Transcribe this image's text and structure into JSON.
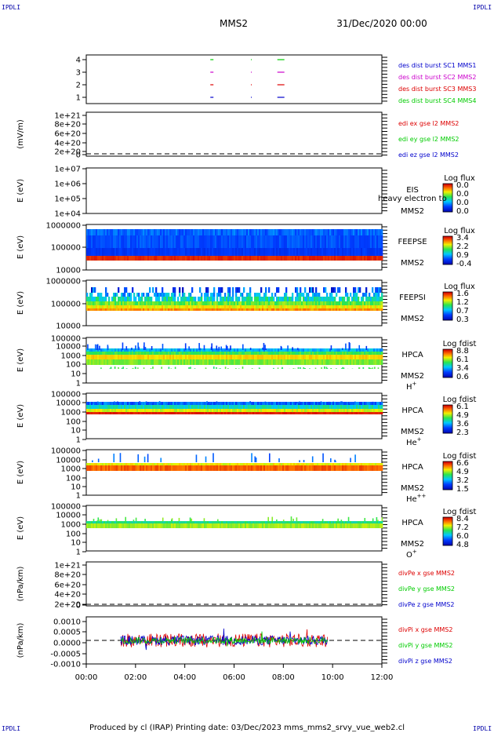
{
  "header": {
    "corner_tl": "IPDLI",
    "corner_tr": "IPDLI",
    "corner_bl": "IPDLI",
    "corner_br": "IPDLI",
    "spacecraft": "MMS2",
    "date": "31/Dec/2020 00:00"
  },
  "footer": {
    "text": "Produced by cl (IRAP)   Printing date: 03/Dec/2023   mms_mms2_srvy_vue_web2.cl"
  },
  "colors": {
    "blue": "#0000cc",
    "magenta": "#cc00cc",
    "red": "#dd0000",
    "green": "#00cc00"
  },
  "chart_data": {
    "type": "multi-panel",
    "xaxis": {
      "range": [
        "00:00",
        "12:00"
      ],
      "ticks": [
        "00:00",
        "02:00",
        "04:00",
        "06:00",
        "08:00",
        "10:00",
        "12:00"
      ]
    },
    "panels": [
      {
        "id": "burst",
        "type": "scatter",
        "yticks": [
          "4",
          "3",
          "2",
          "1"
        ],
        "legend": [
          {
            "text": "des dist burst SC1 MMS1",
            "color": "#0000cc"
          },
          {
            "text": "des dist burst SC2 MMS2",
            "color": "#cc00cc"
          },
          {
            "text": "des dist burst SC3 MMS3",
            "color": "#dd0000"
          },
          {
            "text": "des dist burst SC4 MMS4",
            "color": "#00cc00"
          }
        ],
        "bursts_hours": [
          5.1,
          6.7,
          7.9
        ]
      },
      {
        "id": "edi",
        "type": "line",
        "ylabel": "(mV/m)",
        "yticks": [
          "1e+21",
          "8e+20",
          "6e+20",
          "4e+20",
          "2e+20",
          "0"
        ],
        "legend": [
          {
            "text": "edi ex gse l2 MMS2",
            "color": "#dd0000"
          },
          {
            "text": "edi ey gse l2 MMS2",
            "color": "#00cc00"
          },
          {
            "text": "edi ez gse l2 MMS2",
            "color": "#0000cc"
          }
        ]
      },
      {
        "id": "eis",
        "type": "heatmap",
        "ylabel": "E (eV)",
        "yticks": [
          "1e+07",
          "1e+06",
          "1e+05",
          "1e+04"
        ],
        "labels": [
          "EIS",
          "MMS2"
        ],
        "overlay_text": "heavy electron to",
        "cbar_title": "Log flux",
        "cbar_ticks": [
          "0.0",
          "0.0",
          "0.0",
          "0.0"
        ]
      },
      {
        "id": "feepse",
        "type": "heatmap",
        "ylabel": "E (eV)",
        "yticks": [
          "1000000",
          "100000",
          "10000"
        ],
        "labels": [
          "FEEPSE",
          "MMS2"
        ],
        "cbar_title": "Log flux",
        "cbar_ticks": [
          "3.4",
          "2.2",
          "0.9",
          "-0.4"
        ]
      },
      {
        "id": "feepsi",
        "type": "heatmap",
        "ylabel": "E (eV)",
        "yticks": [
          "1000000",
          "100000",
          "10000"
        ],
        "labels": [
          "FEEPSI",
          "MMS2"
        ],
        "cbar_title": "Log flux",
        "cbar_ticks": [
          "1.6",
          "1.2",
          "0.7",
          "0.3"
        ]
      },
      {
        "id": "hpca_h",
        "type": "heatmap",
        "ylabel": "E (eV)",
        "yticks": [
          "100000",
          "10000",
          "1000",
          "100",
          "10",
          "1"
        ],
        "labels": [
          "HPCA",
          "MMS2"
        ],
        "species": "H",
        "species_sup": "+",
        "cbar_title": "Log fdist",
        "cbar_ticks": [
          "8.8",
          "6.1",
          "3.4",
          "0.6"
        ]
      },
      {
        "id": "hpca_he",
        "type": "heatmap",
        "ylabel": "E (eV)",
        "yticks": [
          "100000",
          "10000",
          "1000",
          "100",
          "10",
          "1"
        ],
        "labels": [
          "HPCA",
          "MMS2"
        ],
        "species": "He",
        "species_sup": "+",
        "cbar_title": "Log fdist",
        "cbar_ticks": [
          "6.1",
          "4.9",
          "3.6",
          "2.3"
        ]
      },
      {
        "id": "hpca_hepp",
        "type": "heatmap",
        "ylabel": "E (eV)",
        "yticks": [
          "100000",
          "10000",
          "1000",
          "100",
          "10",
          "1"
        ],
        "labels": [
          "HPCA",
          "MMS2"
        ],
        "species": "He",
        "species_sup": "++",
        "cbar_title": "Log fdist",
        "cbar_ticks": [
          "6.6",
          "4.9",
          "3.2",
          "1.5"
        ]
      },
      {
        "id": "hpca_o",
        "type": "heatmap",
        "ylabel": "E (eV)",
        "yticks": [
          "100000",
          "10000",
          "1000",
          "100",
          "10",
          "1"
        ],
        "labels": [
          "HPCA",
          "MMS2"
        ],
        "species": "O",
        "species_sup": "+",
        "cbar_title": "Log fdist",
        "cbar_ticks": [
          "8.4",
          "7.2",
          "6.0",
          "4.8"
        ]
      },
      {
        "id": "divpe",
        "type": "line",
        "ylabel": "(nPa/km)",
        "yticks": [
          "1e+21",
          "8e+20",
          "6e+20",
          "4e+20",
          "2e+20",
          "0"
        ],
        "legend": [
          {
            "text": "divPe x gse MMS2",
            "color": "#dd0000"
          },
          {
            "text": "divPe y gse MMS2",
            "color": "#00cc00"
          },
          {
            "text": "divPe z gse MMS2",
            "color": "#0000cc"
          }
        ]
      },
      {
        "id": "divpi",
        "type": "line",
        "ylabel": "(nPa/km)",
        "yticks": [
          "0.0010",
          "0.0005",
          "0.0000",
          "-0.0005",
          "-0.0010"
        ],
        "ylim": [
          -0.0011,
          0.0011
        ],
        "data_range_hours": [
          1.4,
          9.8
        ],
        "legend": [
          {
            "text": "divPi x gse MMS2",
            "color": "#dd0000"
          },
          {
            "text": "divPi y gse MMS2",
            "color": "#00cc00"
          },
          {
            "text": "divPi z gse MMS2",
            "color": "#0000cc"
          }
        ]
      }
    ]
  }
}
